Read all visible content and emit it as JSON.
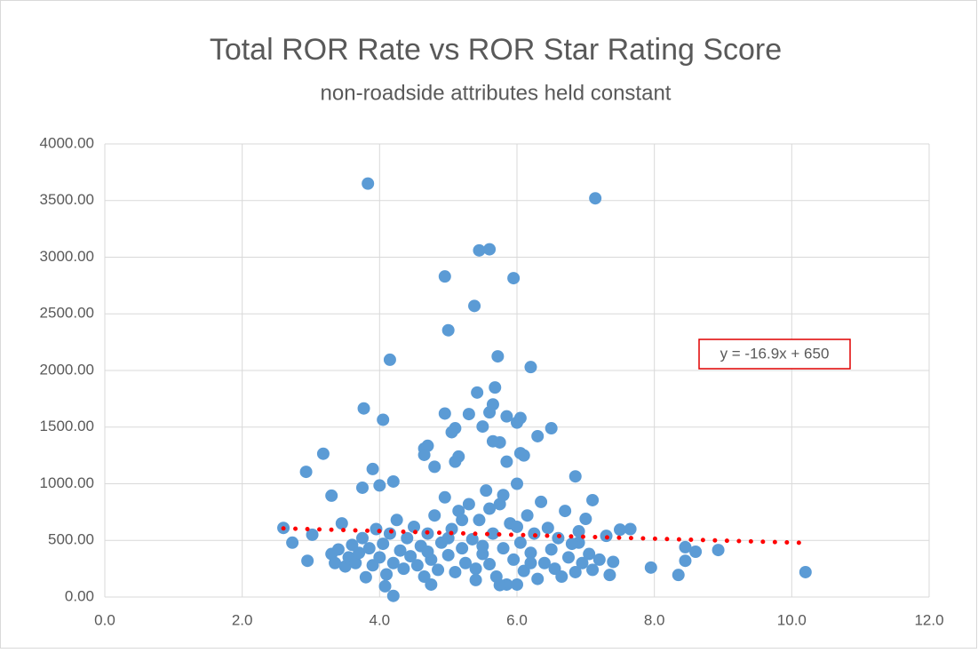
{
  "chart_data": {
    "type": "scatter",
    "title": "Total ROR Rate vs ROR Star Rating Score",
    "subtitle": "non-roadside attributes held constant",
    "color": "#5b9bd5",
    "x": [
      3.83,
      7.14,
      5.45,
      5.6,
      4.95,
      5.95,
      5.38,
      5.0,
      5.72,
      4.15,
      6.2,
      5.42,
      5.68,
      3.77,
      4.05,
      4.95,
      5.3,
      5.65,
      5.6,
      6.05,
      5.85,
      6.0,
      6.5,
      6.3,
      5.1,
      5.05,
      5.5,
      2.93,
      3.18,
      3.9,
      3.75,
      4.0,
      4.2,
      4.65,
      4.7,
      4.65,
      4.8,
      5.15,
      5.1,
      5.85,
      5.75,
      5.65,
      6.05,
      6.1,
      6.85,
      7.1,
      3.3,
      3.45,
      2.6,
      2.73,
      2.95,
      3.02,
      4.2,
      4.08,
      3.8,
      7.95,
      8.35,
      8.45,
      8.45,
      8.6,
      8.93,
      10.2,
      7.65,
      7.5,
      7.4,
      7.35,
      7.3,
      6.9,
      3.3,
      3.35,
      3.4,
      3.5,
      3.55,
      3.6,
      3.65,
      3.7,
      3.75,
      3.85,
      3.9,
      3.95,
      4.0,
      4.05,
      4.1,
      4.15,
      4.2,
      4.25,
      4.3,
      4.35,
      4.4,
      4.45,
      4.5,
      4.55,
      4.6,
      4.65,
      4.7,
      4.75,
      4.8,
      4.85,
      4.9,
      4.95,
      5.0,
      5.05,
      5.1,
      5.15,
      5.2,
      5.25,
      5.3,
      5.35,
      5.4,
      5.45,
      5.5,
      5.55,
      5.6,
      5.65,
      5.7,
      5.75,
      5.8,
      5.85,
      5.9,
      5.95,
      6.0,
      6.05,
      6.1,
      6.15,
      6.2,
      6.25,
      6.3,
      6.35,
      6.4,
      6.45,
      6.5,
      6.55,
      6.6,
      6.65,
      6.7,
      6.75,
      6.8,
      6.85,
      6.9,
      6.95,
      7.0,
      7.05,
      7.1,
      7.2,
      5.2,
      5.6,
      6.0,
      5.0,
      5.5,
      6.2,
      4.7,
      5.8,
      5.4,
      6.0,
      4.75,
      5.75
    ],
    "values": [
      3650,
      3520,
      3060,
      3070,
      2830,
      2815,
      2570,
      2355,
      2125,
      2095,
      2030,
      1805,
      1850,
      1665,
      1565,
      1620,
      1615,
      1700,
      1630,
      1580,
      1595,
      1540,
      1490,
      1420,
      1490,
      1455,
      1505,
      1105,
      1265,
      1130,
      965,
      985,
      1020,
      1310,
      1335,
      1255,
      1150,
      1240,
      1195,
      1195,
      1365,
      1375,
      1270,
      1250,
      1065,
      855,
      895,
      650,
      610,
      480,
      320,
      550,
      10,
      95,
      175,
      260,
      195,
      320,
      440,
      400,
      415,
      220,
      600,
      595,
      310,
      195,
      540,
      480,
      380,
      300,
      420,
      270,
      350,
      460,
      300,
      390,
      520,
      430,
      280,
      600,
      350,
      470,
      200,
      560,
      300,
      680,
      410,
      250,
      520,
      360,
      620,
      280,
      450,
      180,
      560,
      330,
      720,
      240,
      480,
      880,
      370,
      600,
      220,
      760,
      430,
      300,
      820,
      510,
      250,
      680,
      380,
      940,
      290,
      560,
      180,
      820,
      430,
      110,
      650,
      330,
      1000,
      480,
      230,
      720,
      390,
      560,
      160,
      840,
      300,
      610,
      420,
      250,
      520,
      180,
      760,
      350,
      470,
      220,
      580,
      300,
      690,
      380,
      240,
      330,
      680,
      780,
      620,
      520,
      450,
      300,
      400,
      900,
      150,
      110,
      110,
      105
    ],
    "xlim": [
      0,
      12
    ],
    "ylim": [
      0,
      4000
    ],
    "xticks": [
      {
        "value": 0,
        "label": "0.0"
      },
      {
        "value": 2,
        "label": "2.0"
      },
      {
        "value": 4,
        "label": "4.0"
      },
      {
        "value": 6,
        "label": "6.0"
      },
      {
        "value": 8,
        "label": "8.0"
      },
      {
        "value": 10,
        "label": "10.0"
      },
      {
        "value": 12,
        "label": "12.0"
      }
    ],
    "yticks": [
      {
        "value": 0,
        "label": "0.00"
      },
      {
        "value": 500,
        "label": "500.00"
      },
      {
        "value": 1000,
        "label": "1000.00"
      },
      {
        "value": 1500,
        "label": "1500.00"
      },
      {
        "value": 2000,
        "label": "2000.00"
      },
      {
        "value": 2500,
        "label": "2500.00"
      },
      {
        "value": 3000,
        "label": "3000.00"
      },
      {
        "value": 3500,
        "label": "3500.00"
      },
      {
        "value": 4000,
        "label": "4000.00"
      }
    ],
    "grid": true,
    "trendline": {
      "slope": -16.9,
      "intercept": 650,
      "xrange": [
        2.6,
        10.2
      ],
      "color": "#ff0000",
      "label": "y = -16.9x + 650"
    }
  }
}
